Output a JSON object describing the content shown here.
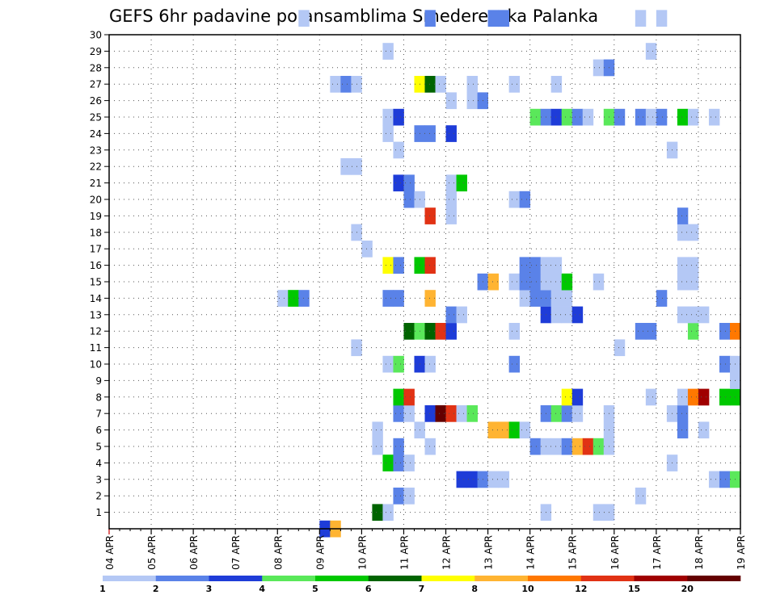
{
  "chart_data": {
    "type": "heatmap",
    "title": "GEFS 6hr padavine po ansamblima Smederevska Palanka",
    "xlabel": "",
    "ylabel": "",
    "x_start": "2026-04-04T00:00Z",
    "x_end": "2026-04-19T00:00Z",
    "x_step_hours": 6,
    "x_tick_labels": [
      "04 APR",
      "05 APR",
      "06 APR",
      "07 APR",
      "08 APR",
      "09 APR",
      "10 APR",
      "11 APR",
      "12 APR",
      "13 APR",
      "14 APR",
      "15 APR",
      "16 APR",
      "17 APR",
      "18 APR",
      "19 APR"
    ],
    "y_tick_labels": [
      1,
      2,
      3,
      4,
      5,
      6,
      7,
      8,
      9,
      10,
      11,
      12,
      13,
      14,
      15,
      16,
      17,
      18,
      19,
      20,
      21,
      22,
      23,
      24,
      25,
      26,
      27,
      28,
      29,
      30
    ],
    "ylim": [
      0,
      30
    ],
    "grid": true,
    "legend": {
      "placement": "bottom",
      "levels": [
        1,
        2,
        3,
        4,
        5,
        6,
        7,
        8,
        10,
        12,
        15,
        20
      ],
      "tick_labels": [
        "1",
        "2",
        "3",
        "4",
        "5",
        "6",
        "7",
        "8",
        "10",
        "12",
        "15",
        "20"
      ],
      "colors": [
        "#b4c8f5",
        "#5a82e8",
        "#1e3cd8",
        "#5ae85a",
        "#00c800",
        "#006400",
        "#ffff00",
        "#ffb432",
        "#ff7800",
        "#e13214",
        "#a00000",
        "#640000"
      ]
    },
    "units": "mm",
    "cells": [
      {
        "m": 0,
        "s": 20,
        "v": 3.5
      },
      {
        "m": 0,
        "s": 21,
        "v": 8.5
      },
      {
        "m": 1,
        "s": 25,
        "v": 6.5
      },
      {
        "m": 1,
        "s": 26,
        "v": 1.5
      },
      {
        "m": 1,
        "s": 41,
        "v": 1.5
      },
      {
        "m": 1,
        "s": 46,
        "v": 1.5
      },
      {
        "m": 1,
        "s": 47,
        "v": 1.5
      },
      {
        "m": 2,
        "s": 27,
        "v": 2.5
      },
      {
        "m": 2,
        "s": 28,
        "v": 1.5
      },
      {
        "m": 2,
        "s": 50,
        "v": 1.5
      },
      {
        "m": 3,
        "s": 33,
        "v": 3.5
      },
      {
        "m": 3,
        "s": 34,
        "v": 3.5
      },
      {
        "m": 3,
        "s": 35,
        "v": 2.5
      },
      {
        "m": 3,
        "s": 36,
        "v": 1.5
      },
      {
        "m": 3,
        "s": 37,
        "v": 1.5
      },
      {
        "m": 3,
        "s": 57,
        "v": 1.5
      },
      {
        "m": 3,
        "s": 58,
        "v": 2.5
      },
      {
        "m": 3,
        "s": 59,
        "v": 4.5
      },
      {
        "m": 4,
        "s": 26,
        "v": 5.5
      },
      {
        "m": 4,
        "s": 27,
        "v": 2.5
      },
      {
        "m": 4,
        "s": 28,
        "v": 1.5
      },
      {
        "m": 4,
        "s": 53,
        "v": 1.5
      },
      {
        "m": 5,
        "s": 25,
        "v": 1.5
      },
      {
        "m": 5,
        "s": 27,
        "v": 2.5
      },
      {
        "m": 5,
        "s": 30,
        "v": 1.5
      },
      {
        "m": 5,
        "s": 40,
        "v": 2.5
      },
      {
        "m": 5,
        "s": 41,
        "v": 1.5
      },
      {
        "m": 5,
        "s": 42,
        "v": 1.5
      },
      {
        "m": 5,
        "s": 43,
        "v": 2.5
      },
      {
        "m": 5,
        "s": 44,
        "v": 9.5
      },
      {
        "m": 5,
        "s": 45,
        "v": 13.5
      },
      {
        "m": 5,
        "s": 46,
        "v": 4.5
      },
      {
        "m": 5,
        "s": 47,
        "v": 1.5
      },
      {
        "m": 6,
        "s": 25,
        "v": 1.5
      },
      {
        "m": 6,
        "s": 29,
        "v": 1.5
      },
      {
        "m": 6,
        "s": 36,
        "v": 9.5
      },
      {
        "m": 6,
        "s": 37,
        "v": 9.5
      },
      {
        "m": 6,
        "s": 38,
        "v": 5.5
      },
      {
        "m": 6,
        "s": 39,
        "v": 1.5
      },
      {
        "m": 6,
        "s": 47,
        "v": 1.5
      },
      {
        "m": 6,
        "s": 54,
        "v": 2.5
      },
      {
        "m": 6,
        "s": 56,
        "v": 1.5
      },
      {
        "m": 7,
        "s": 27,
        "v": 2.5
      },
      {
        "m": 7,
        "s": 28,
        "v": 1.5
      },
      {
        "m": 7,
        "s": 30,
        "v": 3.5
      },
      {
        "m": 7,
        "s": 31,
        "v": 21
      },
      {
        "m": 7,
        "s": 32,
        "v": 13.5
      },
      {
        "m": 7,
        "s": 33,
        "v": 1.5
      },
      {
        "m": 7,
        "s": 34,
        "v": 4.5
      },
      {
        "m": 7,
        "s": 41,
        "v": 2.5
      },
      {
        "m": 7,
        "s": 42,
        "v": 4.5
      },
      {
        "m": 7,
        "s": 43,
        "v": 2.5
      },
      {
        "m": 7,
        "s": 44,
        "v": 1.5
      },
      {
        "m": 7,
        "s": 47,
        "v": 1.5
      },
      {
        "m": 7,
        "s": 53,
        "v": 1.5
      },
      {
        "m": 7,
        "s": 54,
        "v": 2.5
      },
      {
        "m": 8,
        "s": 27,
        "v": 5.5
      },
      {
        "m": 8,
        "s": 28,
        "v": 13.5
      },
      {
        "m": 8,
        "s": 43,
        "v": 7.5
      },
      {
        "m": 8,
        "s": 44,
        "v": 3.5
      },
      {
        "m": 8,
        "s": 51,
        "v": 1.5
      },
      {
        "m": 8,
        "s": 54,
        "v": 1.5
      },
      {
        "m": 8,
        "s": 55,
        "v": 11
      },
      {
        "m": 8,
        "s": 56,
        "v": 18
      },
      {
        "m": 8,
        "s": 58,
        "v": 5.5
      },
      {
        "m": 8,
        "s": 59,
        "v": 5.5
      },
      {
        "m": 9,
        "s": 59,
        "v": 1.5
      },
      {
        "m": 10,
        "s": 26,
        "v": 1.5
      },
      {
        "m": 10,
        "s": 27,
        "v": 4.5
      },
      {
        "m": 10,
        "s": 29,
        "v": 3.5
      },
      {
        "m": 10,
        "s": 30,
        "v": 1.5
      },
      {
        "m": 10,
        "s": 38,
        "v": 2.5
      },
      {
        "m": 10,
        "s": 58,
        "v": 2.5
      },
      {
        "m": 10,
        "s": 59,
        "v": 1.5
      },
      {
        "m": 11,
        "s": 23,
        "v": 1.5
      },
      {
        "m": 11,
        "s": 48,
        "v": 1.5
      },
      {
        "m": 12,
        "s": 28,
        "v": 6.5
      },
      {
        "m": 12,
        "s": 29,
        "v": 4.5
      },
      {
        "m": 12,
        "s": 30,
        "v": 6.5
      },
      {
        "m": 12,
        "s": 31,
        "v": 13.5
      },
      {
        "m": 12,
        "s": 32,
        "v": 3.5
      },
      {
        "m": 12,
        "s": 38,
        "v": 1.5
      },
      {
        "m": 12,
        "s": 50,
        "v": 2.5
      },
      {
        "m": 12,
        "s": 51,
        "v": 2.5
      },
      {
        "m": 12,
        "s": 55,
        "v": 4.5
      },
      {
        "m": 12,
        "s": 58,
        "v": 2.5
      },
      {
        "m": 12,
        "s": 59,
        "v": 11
      },
      {
        "m": 13,
        "s": 32,
        "v": 2.5
      },
      {
        "m": 13,
        "s": 33,
        "v": 1.5
      },
      {
        "m": 13,
        "s": 41,
        "v": 3.5
      },
      {
        "m": 13,
        "s": 42,
        "v": 1.5
      },
      {
        "m": 13,
        "s": 43,
        "v": 1.5
      },
      {
        "m": 13,
        "s": 44,
        "v": 3.5
      },
      {
        "m": 13,
        "s": 54,
        "v": 1.5
      },
      {
        "m": 13,
        "s": 55,
        "v": 1.5
      },
      {
        "m": 13,
        "s": 56,
        "v": 1.5
      },
      {
        "m": 14,
        "s": 16,
        "v": 1.5
      },
      {
        "m": 14,
        "s": 17,
        "v": 5.5
      },
      {
        "m": 14,
        "s": 18,
        "v": 2.5
      },
      {
        "m": 14,
        "s": 26,
        "v": 2.5
      },
      {
        "m": 14,
        "s": 27,
        "v": 2.5
      },
      {
        "m": 14,
        "s": 30,
        "v": 9.5
      },
      {
        "m": 14,
        "s": 39,
        "v": 1.5
      },
      {
        "m": 14,
        "s": 40,
        "v": 2.5
      },
      {
        "m": 14,
        "s": 41,
        "v": 2.5
      },
      {
        "m": 14,
        "s": 42,
        "v": 1.5
      },
      {
        "m": 14,
        "s": 43,
        "v": 1.5
      },
      {
        "m": 14,
        "s": 52,
        "v": 2.5
      },
      {
        "m": 15,
        "s": 35,
        "v": 2.5
      },
      {
        "m": 15,
        "s": 36,
        "v": 9.5
      },
      {
        "m": 15,
        "s": 38,
        "v": 1.5
      },
      {
        "m": 15,
        "s": 39,
        "v": 2.5
      },
      {
        "m": 15,
        "s": 40,
        "v": 2.5
      },
      {
        "m": 15,
        "s": 41,
        "v": 1.5
      },
      {
        "m": 15,
        "s": 42,
        "v": 1.5
      },
      {
        "m": 15,
        "s": 43,
        "v": 5.5
      },
      {
        "m": 15,
        "s": 46,
        "v": 1.5
      },
      {
        "m": 15,
        "s": 54,
        "v": 1.5
      },
      {
        "m": 15,
        "s": 55,
        "v": 1.5
      },
      {
        "m": 16,
        "s": 26,
        "v": 7.5
      },
      {
        "m": 16,
        "s": 27,
        "v": 2.5
      },
      {
        "m": 16,
        "s": 29,
        "v": 5.5
      },
      {
        "m": 16,
        "s": 30,
        "v": 13.5
      },
      {
        "m": 16,
        "s": 39,
        "v": 2.5
      },
      {
        "m": 16,
        "s": 40,
        "v": 2.5
      },
      {
        "m": 16,
        "s": 41,
        "v": 1.5
      },
      {
        "m": 16,
        "s": 42,
        "v": 1.5
      },
      {
        "m": 16,
        "s": 54,
        "v": 1.5
      },
      {
        "m": 16,
        "s": 55,
        "v": 1.5
      },
      {
        "m": 17,
        "s": 24,
        "v": 1.5
      },
      {
        "m": 18,
        "s": 23,
        "v": 1.5
      },
      {
        "m": 18,
        "s": 54,
        "v": 1.5
      },
      {
        "m": 18,
        "s": 55,
        "v": 1.5
      },
      {
        "m": 19,
        "s": 30,
        "v": 13.5
      },
      {
        "m": 19,
        "s": 32,
        "v": 1.5
      },
      {
        "m": 19,
        "s": 54,
        "v": 2.5
      },
      {
        "m": 20,
        "s": 28,
        "v": 2.5
      },
      {
        "m": 20,
        "s": 29,
        "v": 1.5
      },
      {
        "m": 20,
        "s": 32,
        "v": 1.5
      },
      {
        "m": 20,
        "s": 38,
        "v": 1.5
      },
      {
        "m": 20,
        "s": 39,
        "v": 2.5
      },
      {
        "m": 21,
        "s": 27,
        "v": 3.5
      },
      {
        "m": 21,
        "s": 28,
        "v": 2.5
      },
      {
        "m": 21,
        "s": 32,
        "v": 1.5
      },
      {
        "m": 21,
        "s": 33,
        "v": 5.5
      },
      {
        "m": 22,
        "s": 22,
        "v": 1.5
      },
      {
        "m": 22,
        "s": 23,
        "v": 1.5
      },
      {
        "m": 23,
        "s": 27,
        "v": 1.5
      },
      {
        "m": 23,
        "s": 53,
        "v": 1.5
      },
      {
        "m": 24,
        "s": 26,
        "v": 1.5
      },
      {
        "m": 24,
        "s": 29,
        "v": 2.5
      },
      {
        "m": 24,
        "s": 30,
        "v": 2.5
      },
      {
        "m": 24,
        "s": 32,
        "v": 3.5
      },
      {
        "m": 25,
        "s": 26,
        "v": 1.5
      },
      {
        "m": 25,
        "s": 27,
        "v": 3.5
      },
      {
        "m": 25,
        "s": 40,
        "v": 4.5
      },
      {
        "m": 25,
        "s": 41,
        "v": 2.5
      },
      {
        "m": 25,
        "s": 42,
        "v": 3.5
      },
      {
        "m": 25,
        "s": 43,
        "v": 4.5
      },
      {
        "m": 25,
        "s": 44,
        "v": 2.5
      },
      {
        "m": 25,
        "s": 45,
        "v": 1.5
      },
      {
        "m": 25,
        "s": 47,
        "v": 4.5
      },
      {
        "m": 25,
        "s": 48,
        "v": 2.5
      },
      {
        "m": 25,
        "s": 50,
        "v": 2.5
      },
      {
        "m": 25,
        "s": 51,
        "v": 1.5
      },
      {
        "m": 25,
        "s": 52,
        "v": 2.5
      },
      {
        "m": 25,
        "s": 54,
        "v": 5.5
      },
      {
        "m": 25,
        "s": 55,
        "v": 1.5
      },
      {
        "m": 25,
        "s": 57,
        "v": 1.5
      },
      {
        "m": 26,
        "s": 32,
        "v": 1.5
      },
      {
        "m": 26,
        "s": 34,
        "v": 1.5
      },
      {
        "m": 26,
        "s": 35,
        "v": 2.5
      },
      {
        "m": 27,
        "s": 21,
        "v": 1.5
      },
      {
        "m": 27,
        "s": 22,
        "v": 2.5
      },
      {
        "m": 27,
        "s": 23,
        "v": 1.5
      },
      {
        "m": 27,
        "s": 29,
        "v": 7.5
      },
      {
        "m": 27,
        "s": 30,
        "v": 6.5
      },
      {
        "m": 27,
        "s": 31,
        "v": 1.5
      },
      {
        "m": 27,
        "s": 34,
        "v": 1.5
      },
      {
        "m": 27,
        "s": 38,
        "v": 1.5
      },
      {
        "m": 27,
        "s": 42,
        "v": 1.5
      },
      {
        "m": 28,
        "s": 46,
        "v": 1.5
      },
      {
        "m": 28,
        "s": 47,
        "v": 2.5
      },
      {
        "m": 29,
        "s": 26,
        "v": 1.5
      },
      {
        "m": 29,
        "s": 51,
        "v": 1.5
      },
      {
        "m": 31,
        "s": 18,
        "v": 1.5
      },
      {
        "m": 31,
        "s": 30,
        "v": 2.5
      },
      {
        "m": 31,
        "s": 36,
        "v": 2.5
      },
      {
        "m": 31,
        "s": 37,
        "v": 2.5
      },
      {
        "m": 31,
        "s": 50,
        "v": 1.5
      },
      {
        "m": 31,
        "s": 52,
        "v": 1.5
      }
    ]
  }
}
